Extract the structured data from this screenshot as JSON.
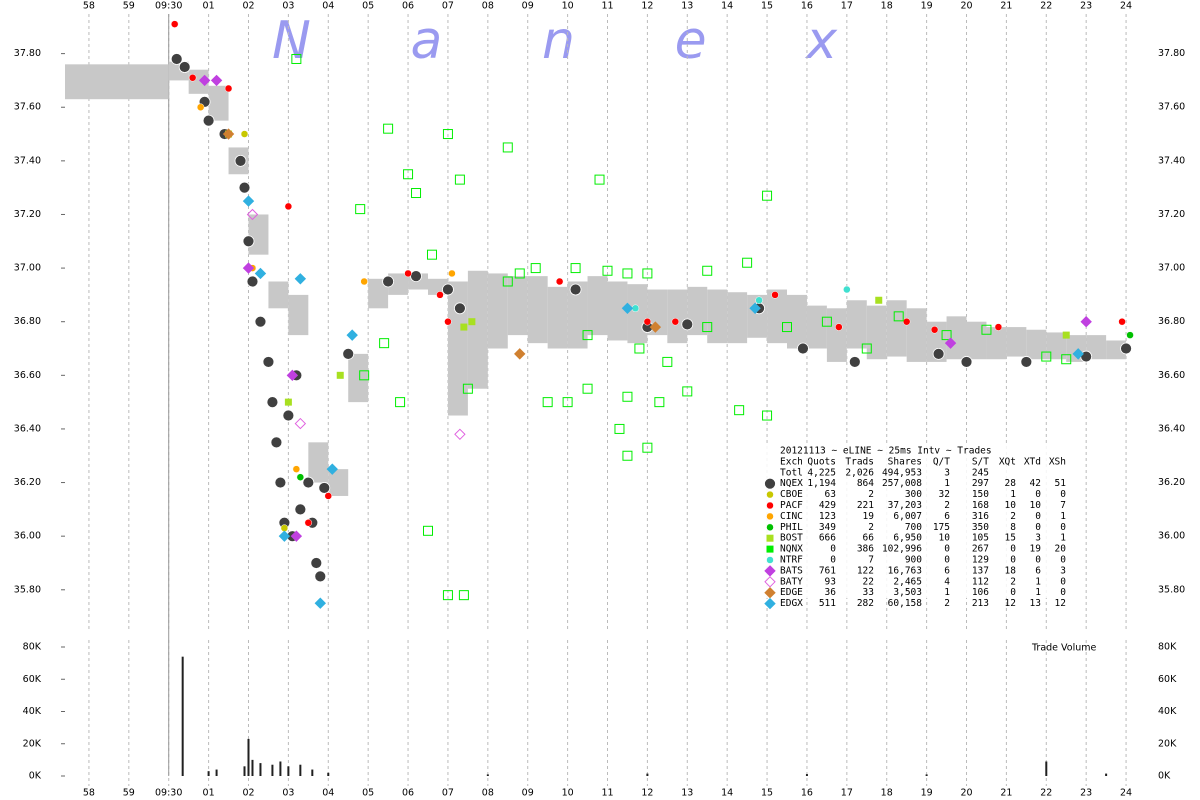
{
  "chart_data": {
    "type": "scatter",
    "title": "Nanex",
    "xlim": [
      -2.6,
      24.6
    ],
    "xticks": [
      {
        "value": -2,
        "label": "58"
      },
      {
        "value": -1,
        "label": "59"
      },
      {
        "value": 0,
        "label": "09:30"
      },
      {
        "value": 1,
        "label": "01"
      },
      {
        "value": 2,
        "label": "02"
      },
      {
        "value": 3,
        "label": "03"
      },
      {
        "value": 4,
        "label": "04"
      },
      {
        "value": 5,
        "label": "05"
      },
      {
        "value": 6,
        "label": "06"
      },
      {
        "value": 7,
        "label": "07"
      },
      {
        "value": 8,
        "label": "08"
      },
      {
        "value": 9,
        "label": "09"
      },
      10,
      11,
      12,
      13,
      14,
      15,
      16,
      17,
      18,
      19,
      20,
      21,
      22,
      23,
      24
    ],
    "ylim": [
      35.65,
      38.0
    ],
    "yticks": [
      {
        "value": 35.8,
        "label": "35.80"
      },
      {
        "value": 36.0,
        "label": "36.00"
      },
      {
        "value": 36.2,
        "label": "36.20"
      },
      {
        "value": 36.4,
        "label": "36.40"
      },
      {
        "value": 36.6,
        "label": "36.60"
      },
      {
        "value": 36.8,
        "label": "36.80"
      },
      {
        "value": 37.0,
        "label": "37.00"
      },
      {
        "value": 37.2,
        "label": "37.20"
      },
      {
        "value": 37.4,
        "label": "37.40"
      },
      {
        "value": 37.6,
        "label": "37.60"
      },
      {
        "value": 37.8,
        "label": "37.80"
      }
    ],
    "grid": true,
    "nbbo": {
      "color": "#c8c8c8",
      "x": [
        -2.6,
        0.0,
        0.5,
        1.0,
        1.5,
        2.0,
        2.5,
        3.0,
        3.5,
        4.0,
        4.5,
        5.0,
        5.5,
        6.0,
        6.5,
        7.0,
        7.5,
        8.0,
        8.5,
        9.0,
        9.5,
        10.0,
        10.5,
        11.0,
        11.5,
        12.0,
        12.5,
        13.0,
        13.5,
        14.0,
        14.5,
        15.0,
        15.5,
        16.0,
        16.5,
        17.0,
        17.5,
        18.0,
        18.5,
        19.0,
        19.5,
        20.0,
        20.5,
        21.0,
        21.5,
        22.0,
        22.5,
        23.0,
        23.5
      ],
      "high": [
        37.76,
        37.77,
        37.74,
        37.68,
        37.45,
        37.2,
        36.95,
        36.9,
        36.35,
        36.25,
        36.68,
        36.96,
        36.98,
        36.98,
        36.96,
        36.95,
        36.99,
        36.98,
        36.97,
        36.97,
        36.93,
        36.95,
        36.97,
        36.95,
        36.94,
        36.92,
        36.92,
        36.93,
        36.92,
        36.91,
        36.9,
        36.92,
        36.9,
        36.86,
        36.85,
        36.88,
        36.86,
        36.88,
        36.85,
        36.8,
        36.82,
        36.8,
        36.78,
        36.78,
        36.77,
        36.76,
        36.75,
        36.75,
        36.73
      ],
      "low": [
        37.63,
        37.7,
        37.65,
        37.55,
        37.35,
        37.05,
        36.85,
        36.75,
        36.2,
        36.15,
        36.5,
        36.85,
        36.9,
        36.92,
        36.9,
        36.45,
        36.55,
        36.7,
        36.75,
        36.72,
        36.7,
        36.7,
        36.75,
        36.73,
        36.72,
        36.75,
        36.72,
        36.75,
        36.72,
        36.72,
        36.74,
        36.72,
        36.7,
        36.7,
        36.65,
        36.7,
        36.66,
        36.67,
        36.65,
        36.65,
        36.66,
        36.66,
        36.66,
        36.67,
        36.66,
        36.66,
        36.65,
        36.66,
        36.66
      ]
    },
    "series": [
      {
        "name": "NQEX",
        "color": "#404040",
        "marker": "circle",
        "x": [
          0.2,
          0.4,
          0.9,
          1.0,
          1.4,
          1.8,
          1.9,
          2.0,
          2.1,
          2.3,
          2.5,
          2.6,
          2.7,
          2.8,
          2.9,
          3.0,
          3.1,
          3.2,
          3.3,
          3.5,
          3.6,
          3.7,
          3.8,
          3.9,
          4.5,
          5.5,
          6.2,
          7.0,
          7.3,
          10.2,
          12.0,
          13.0,
          14.8,
          15.9,
          17.2,
          19.3,
          20.0,
          21.5,
          23.0,
          24.0
        ],
        "y": [
          37.78,
          37.75,
          37.62,
          37.55,
          37.5,
          37.4,
          37.3,
          37.1,
          36.95,
          36.8,
          36.65,
          36.5,
          36.35,
          36.2,
          36.05,
          36.45,
          36.0,
          36.6,
          36.1,
          36.2,
          36.05,
          35.9,
          35.85,
          36.18,
          36.68,
          36.95,
          36.97,
          36.92,
          36.85,
          36.92,
          36.78,
          36.79,
          36.85,
          36.7,
          36.65,
          36.68,
          36.65,
          36.65,
          36.67,
          36.7
        ]
      },
      {
        "name": "CBOE",
        "color": "#c8c800",
        "marker": "dot",
        "x": [
          1.9,
          2.9
        ],
        "y": [
          37.5,
          36.03
        ]
      },
      {
        "name": "PACF",
        "color": "#ff0000",
        "marker": "dot",
        "x": [
          0.15,
          0.6,
          1.5,
          2.1,
          3.0,
          3.5,
          4.0,
          6.0,
          6.8,
          7.0,
          9.8,
          12.0,
          12.7,
          15.2,
          16.8,
          18.5,
          19.2,
          20.8,
          23.9
        ],
        "y": [
          37.91,
          37.71,
          37.67,
          37.0,
          37.23,
          36.05,
          36.15,
          36.98,
          36.9,
          36.8,
          36.95,
          36.8,
          36.8,
          36.9,
          36.78,
          36.8,
          36.77,
          36.78,
          36.8
        ]
      },
      {
        "name": "CINC",
        "color": "#ffa500",
        "marker": "dot",
        "x": [
          0.8,
          2.1,
          3.2,
          4.9,
          7.1
        ],
        "y": [
          37.6,
          37.0,
          36.25,
          36.95,
          36.98
        ]
      },
      {
        "name": "PHIL",
        "color": "#00c000",
        "marker": "dot",
        "x": [
          3.3,
          24.1
        ],
        "y": [
          36.22,
          36.75
        ]
      },
      {
        "name": "BOST",
        "color": "#a8e020",
        "marker": "fsquare",
        "x": [
          1.5,
          4.3,
          7.4,
          7.6,
          3.0,
          17.8,
          22.5
        ],
        "y": [
          37.5,
          36.6,
          36.78,
          36.8,
          36.5,
          36.88,
          36.75
        ]
      },
      {
        "name": "NQNX",
        "color": "#00ee00",
        "marker": "square",
        "x": [
          3.2,
          7.0,
          8.5,
          6.0,
          5.5,
          6.2,
          7.3,
          10.8,
          4.8,
          15.0,
          9.5,
          5.8,
          7.5,
          10.0,
          10.5,
          11.5,
          12.3,
          13.0,
          11.3,
          12.0,
          11.5,
          14.3,
          15.0,
          8.5,
          8.8,
          9.2,
          10.2,
          11.0,
          12.0,
          13.5,
          14.5,
          12.5,
          11.8,
          10.5,
          13.5,
          15.5,
          16.5,
          17.5,
          18.3,
          19.5,
          20.5,
          22.0,
          22.5,
          6.5,
          7.0,
          7.4,
          4.9,
          5.4,
          6.6,
          11.5
        ],
        "y": [
          37.78,
          37.5,
          37.45,
          37.35,
          37.52,
          37.28,
          37.33,
          37.33,
          37.22,
          37.27,
          36.5,
          36.5,
          36.55,
          36.5,
          36.55,
          36.52,
          36.5,
          36.54,
          36.4,
          36.33,
          36.3,
          36.47,
          36.45,
          36.95,
          36.98,
          37.0,
          37.0,
          36.99,
          36.98,
          36.99,
          37.02,
          36.65,
          36.7,
          36.75,
          36.78,
          36.78,
          36.8,
          36.7,
          36.82,
          36.75,
          36.77,
          36.67,
          36.66,
          36.02,
          35.78,
          35.78,
          36.6,
          36.72,
          37.05,
          36.98
        ]
      },
      {
        "name": "NTRF",
        "color": "#40e0d0",
        "marker": "dot",
        "x": [
          11.7,
          14.8,
          17.0
        ],
        "y": [
          36.85,
          36.88,
          36.92
        ]
      },
      {
        "name": "BATS",
        "color": "#c040e0",
        "marker": "diamond",
        "x": [
          0.9,
          1.2,
          2.0,
          3.1,
          3.2,
          23.0,
          19.6
        ],
        "y": [
          37.7,
          37.7,
          37.0,
          36.6,
          36.0,
          36.8,
          36.72
        ]
      },
      {
        "name": "BATY",
        "color": "#e060e0",
        "marker": "odiamond",
        "x": [
          2.1,
          3.3,
          7.3
        ],
        "y": [
          37.2,
          36.42,
          36.38
        ]
      },
      {
        "name": "EDGE",
        "color": "#d08030",
        "marker": "diamond",
        "x": [
          1.5,
          8.8,
          12.2
        ],
        "y": [
          37.5,
          36.68,
          36.78
        ]
      },
      {
        "name": "EDGX",
        "color": "#30b0e0",
        "marker": "diamond",
        "x": [
          2.0,
          2.3,
          2.9,
          3.3,
          3.8,
          4.1,
          4.6,
          11.5,
          14.7,
          22.8
        ],
        "y": [
          37.25,
          36.98,
          36.0,
          36.96,
          35.75,
          36.25,
          36.75,
          36.85,
          36.85,
          36.68
        ]
      }
    ],
    "volume": {
      "label": "Trade Volume",
      "color": "#202020",
      "ylim": [
        0,
        80000
      ],
      "yticks": [
        {
          "value": 0,
          "label": "0K"
        },
        {
          "value": 20000,
          "label": "20K"
        },
        {
          "value": 40000,
          "label": "40K"
        },
        {
          "value": 60000,
          "label": "60K"
        },
        {
          "value": 80000,
          "label": "80K"
        }
      ],
      "x": [
        0.35,
        1.0,
        1.2,
        1.9,
        2.0,
        2.1,
        2.3,
        2.6,
        2.8,
        3.0,
        3.3,
        3.6,
        4.0,
        8.0,
        12.0,
        16.0,
        19.0,
        22.0,
        23.5
      ],
      "values": [
        74000,
        3000,
        4000,
        6000,
        23000,
        10000,
        8000,
        7000,
        9000,
        6000,
        7000,
        4000,
        2000,
        1000,
        1500,
        1200,
        1000,
        9000,
        1500
      ]
    }
  },
  "stats_table": {
    "title": "20121113 ~ eLINE ~ 25ms Intv ~ Trades",
    "columns": [
      "Exch",
      "Quots",
      "Trads",
      "Shares",
      "Q/T",
      "S/T",
      "XQt",
      "XTd",
      "XSh"
    ],
    "total": [
      "Totl",
      "4,225",
      "2,026",
      "494,953",
      "3",
      "245"
    ],
    "rows": [
      [
        "1,194",
        "864",
        "257,008",
        "1",
        "297",
        "28",
        "42",
        "51"
      ],
      [
        "63",
        "2",
        "300",
        "32",
        "150",
        "1",
        "0",
        "0"
      ],
      [
        "429",
        "221",
        "37,203",
        "2",
        "168",
        "10",
        "10",
        "7"
      ],
      [
        "123",
        "19",
        "6,007",
        "6",
        "316",
        "2",
        "0",
        "1"
      ],
      [
        "349",
        "2",
        "700",
        "175",
        "350",
        "8",
        "0",
        "0"
      ],
      [
        "666",
        "66",
        "6,950",
        "10",
        "105",
        "15",
        "3",
        "1"
      ],
      [
        "0",
        "386",
        "102,996",
        "0",
        "267",
        "0",
        "19",
        "20"
      ],
      [
        "0",
        "7",
        "900",
        "0",
        "129",
        "0",
        "0",
        "0"
      ],
      [
        "761",
        "122",
        "16,763",
        "6",
        "137",
        "18",
        "6",
        "3"
      ],
      [
        "93",
        "22",
        "2,465",
        "4",
        "112",
        "2",
        "1",
        "0"
      ],
      [
        "36",
        "33",
        "3,503",
        "1",
        "106",
        "0",
        "1",
        "0"
      ],
      [
        "511",
        "282",
        "60,158",
        "2",
        "213",
        "12",
        "13",
        "12"
      ]
    ]
  }
}
